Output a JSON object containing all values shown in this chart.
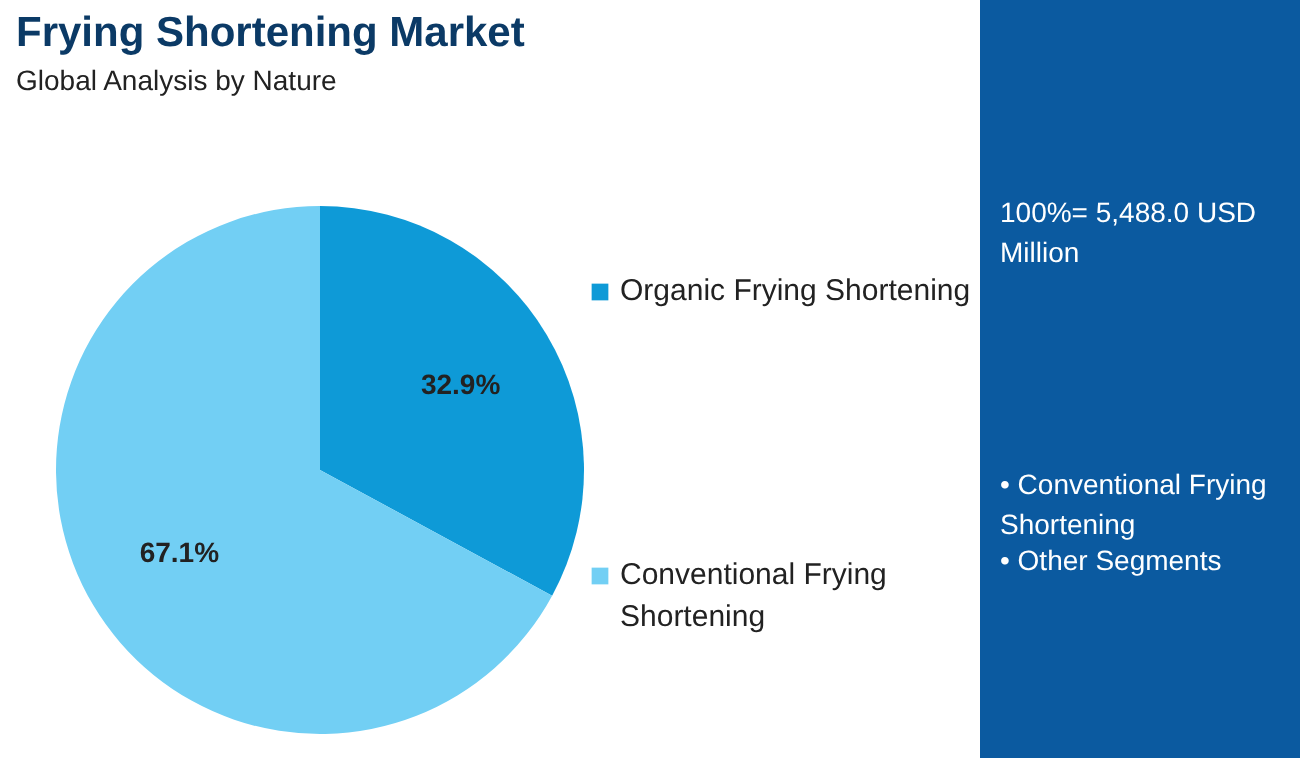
{
  "chart_data": {
    "type": "pie",
    "title": "Frying Shortening Market",
    "subtitle": "Global Analysis by Nature",
    "categories": [
      "Organic Frying Shortening",
      "Conventional Frying Shortening"
    ],
    "values": [
      32.9,
      67.1
    ],
    "colors": [
      "#0e9ad7",
      "#72cff4"
    ],
    "value_labels": [
      "32.9%",
      "67.1%"
    ],
    "legend": "right",
    "annotations": [
      "100%= 5,488.0 USD Million",
      "• Conventional Frying Shortening",
      "• Other Segments"
    ]
  }
}
